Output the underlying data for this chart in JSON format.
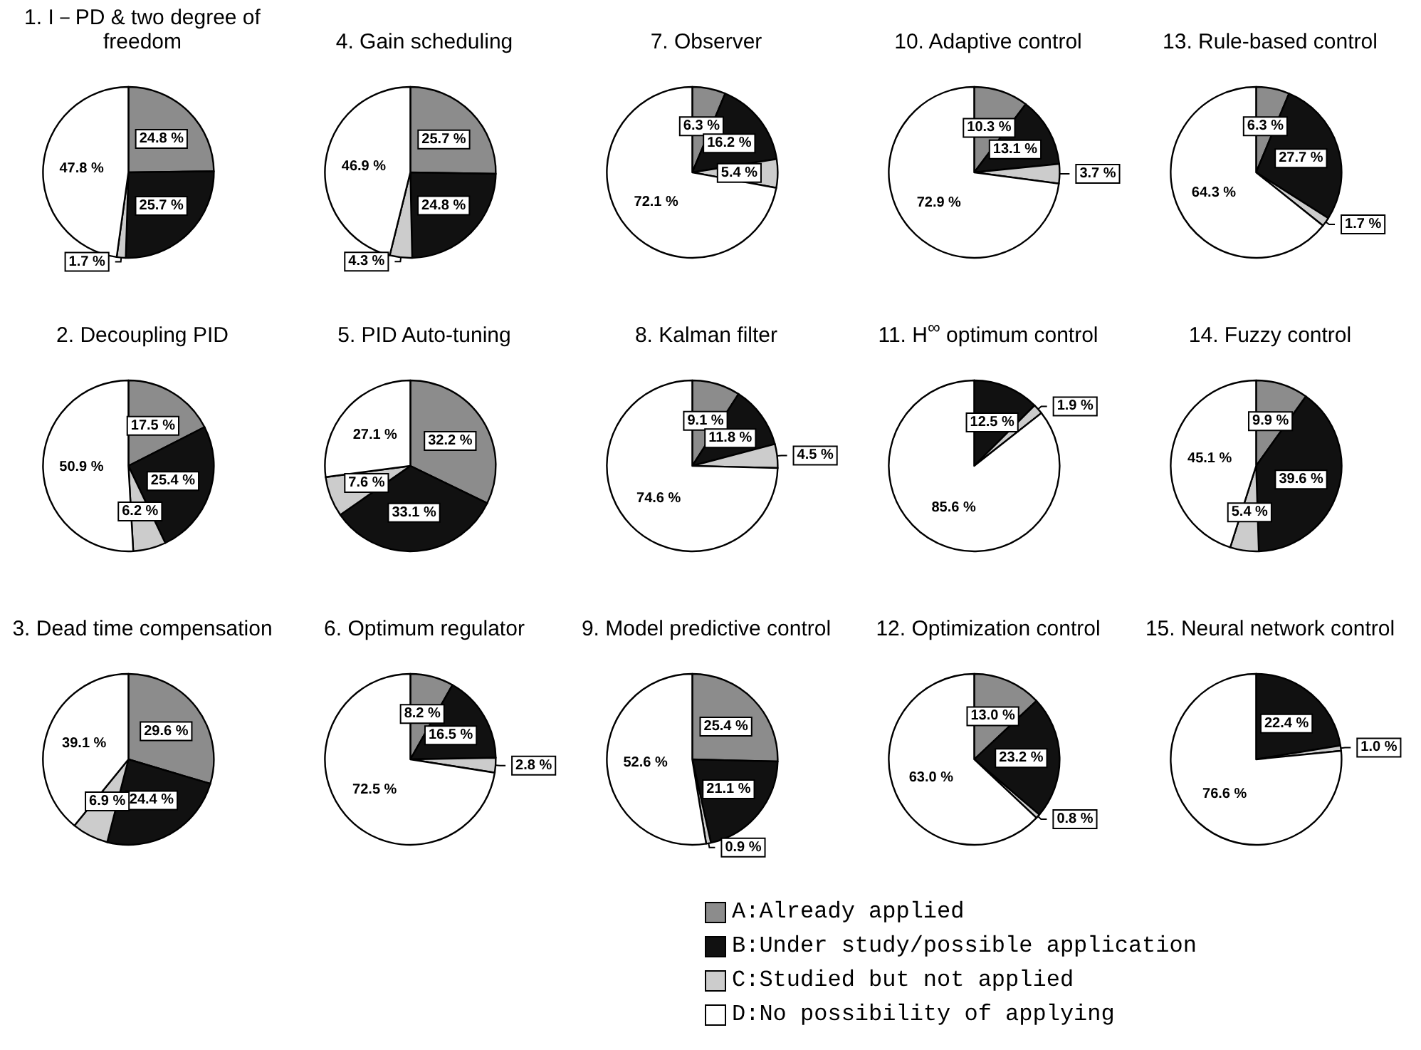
{
  "chart_data": [
    {
      "type": "pie",
      "title": "1. I－PD & two degree of freedom",
      "categories": [
        "A:Already applied",
        "B:Under study/possible application",
        "C:Studied but not applied",
        "D:No possibility of applying"
      ],
      "values": [
        24.8,
        25.7,
        1.7,
        47.8
      ],
      "value_labels": [
        "24.8 %",
        "25.7 %",
        "1.7 %",
        "47.8 %"
      ],
      "colors": [
        "#8c8c8c",
        "#111111",
        "#cccccc",
        "#ffffff"
      ],
      "legend": "bottom"
    },
    {
      "type": "pie",
      "title": "4. Gain scheduling",
      "categories": [
        null,
        null,
        null,
        null
      ],
      "values": [
        25.7,
        24.8,
        4.3,
        46.9
      ],
      "value_labels": [
        "25.7 %",
        "24.8 %",
        "4.3 %",
        "46.9 %"
      ],
      "colors": [
        "#8c8c8c",
        "#111111",
        "#cccccc",
        "#ffffff"
      ]
    },
    {
      "type": "pie",
      "title": "7. Observer",
      "categories": [
        null,
        null,
        null,
        null
      ],
      "values": [
        6.3,
        16.2,
        5.4,
        72.1
      ],
      "value_labels": [
        "6.3 %",
        "16.2 %",
        "5.4 %",
        "72.1 %"
      ],
      "colors": [
        "#8c8c8c",
        "#111111",
        "#cccccc",
        "#ffffff"
      ]
    },
    {
      "type": "pie",
      "title": "10. Adaptive control",
      "categories": [
        null,
        null,
        null,
        null
      ],
      "values": [
        10.3,
        13.1,
        3.7,
        72.9
      ],
      "value_labels": [
        "10.3 %",
        "13.1 %",
        "3.7 %",
        "72.9 %"
      ],
      "colors": [
        "#8c8c8c",
        "#111111",
        "#cccccc",
        "#ffffff"
      ]
    },
    {
      "type": "pie",
      "title": "13. Rule-based control",
      "categories": [
        null,
        null,
        null,
        null
      ],
      "values": [
        6.3,
        27.7,
        1.7,
        64.3
      ],
      "value_labels": [
        "6.3 %",
        "27.7 %",
        "1.7 %",
        "64.3 %"
      ],
      "colors": [
        "#8c8c8c",
        "#111111",
        "#cccccc",
        "#ffffff"
      ]
    },
    {
      "type": "pie",
      "title": "2. Decoupling PID",
      "categories": [
        null,
        null,
        null,
        null
      ],
      "values": [
        17.5,
        25.4,
        6.2,
        50.9
      ],
      "value_labels": [
        "17.5 %",
        "25.4 %",
        "6.2 %",
        "50.9 %"
      ],
      "colors": [
        "#8c8c8c",
        "#111111",
        "#cccccc",
        "#ffffff"
      ]
    },
    {
      "type": "pie",
      "title": "5. PID Auto-tuning",
      "categories": [
        null,
        null,
        null,
        null
      ],
      "values": [
        32.2,
        33.1,
        7.6,
        27.1
      ],
      "value_labels": [
        "32.2 %",
        "33.1 %",
        "7.6 %",
        "27.1 %"
      ],
      "colors": [
        "#8c8c8c",
        "#111111",
        "#cccccc",
        "#ffffff"
      ]
    },
    {
      "type": "pie",
      "title": "8. Kalman filter",
      "categories": [
        null,
        null,
        null,
        null
      ],
      "values": [
        9.1,
        11.8,
        4.5,
        74.6
      ],
      "value_labels": [
        "9.1 %",
        "11.8 %",
        "4.5 %",
        "74.6 %"
      ],
      "colors": [
        "#8c8c8c",
        "#111111",
        "#cccccc",
        "#ffffff"
      ]
    },
    {
      "type": "pie",
      "title": "11. H$^{∞}$ optimum control",
      "categories": [
        null,
        null,
        null,
        null
      ],
      "values": [
        0,
        12.5,
        1.9,
        85.6
      ],
      "value_labels": [
        null,
        "12.5 %",
        "1.9 %",
        "85.6 %"
      ],
      "colors": [
        "#8c8c8c",
        "#111111",
        "#cccccc",
        "#ffffff"
      ]
    },
    {
      "type": "pie",
      "title": "14. Fuzzy control",
      "categories": [
        null,
        null,
        null,
        null
      ],
      "values": [
        9.9,
        39.6,
        5.4,
        45.1
      ],
      "value_labels": [
        "9.9 %",
        "39.6 %",
        "5.4 %",
        "45.1 %"
      ],
      "colors": [
        "#8c8c8c",
        "#111111",
        "#cccccc",
        "#ffffff"
      ]
    },
    {
      "type": "pie",
      "title": "3. Dead time compensation",
      "categories": [
        null,
        null,
        null,
        null
      ],
      "values": [
        29.6,
        24.4,
        6.9,
        39.1
      ],
      "value_labels": [
        "29.6 %",
        "24.4 %",
        "6.9 %",
        "39.1 %"
      ],
      "colors": [
        "#8c8c8c",
        "#111111",
        "#cccccc",
        "#ffffff"
      ]
    },
    {
      "type": "pie",
      "title": "6. Optimum regulator",
      "categories": [
        null,
        null,
        null,
        null
      ],
      "values": [
        8.2,
        16.5,
        2.8,
        72.5
      ],
      "value_labels": [
        "8.2 %",
        "16.5 %",
        "2.8 %",
        "72.5 %"
      ],
      "colors": [
        "#8c8c8c",
        "#111111",
        "#cccccc",
        "#ffffff"
      ]
    },
    {
      "type": "pie",
      "title": "9. Model predictive control",
      "categories": [
        null,
        null,
        null,
        null
      ],
      "values": [
        25.4,
        21.1,
        0.9,
        52.6
      ],
      "value_labels": [
        "25.4 %",
        "21.1 %",
        "0.9 %",
        "52.6 %"
      ],
      "colors": [
        "#8c8c8c",
        "#111111",
        "#cccccc",
        "#ffffff"
      ]
    },
    {
      "type": "pie",
      "title": "12. Optimization control",
      "categories": [
        null,
        null,
        null,
        null
      ],
      "values": [
        13.0,
        23.2,
        0.8,
        63.0
      ],
      "value_labels": [
        "13.0 %",
        "23.2 %",
        "0.8 %",
        "63.0 %"
      ],
      "colors": [
        "#8c8c8c",
        "#111111",
        "#cccccc",
        "#ffffff"
      ]
    },
    {
      "type": "pie",
      "title": "15. Neural network control",
      "categories": [
        null,
        null,
        null,
        null
      ],
      "values": [
        0,
        22.4,
        1.0,
        76.6
      ],
      "value_labels": [
        null,
        "22.4 %",
        "1.0 %",
        "76.6 %"
      ],
      "colors": [
        "#8c8c8c",
        "#111111",
        "#cccccc",
        "#ffffff"
      ]
    }
  ]
}
